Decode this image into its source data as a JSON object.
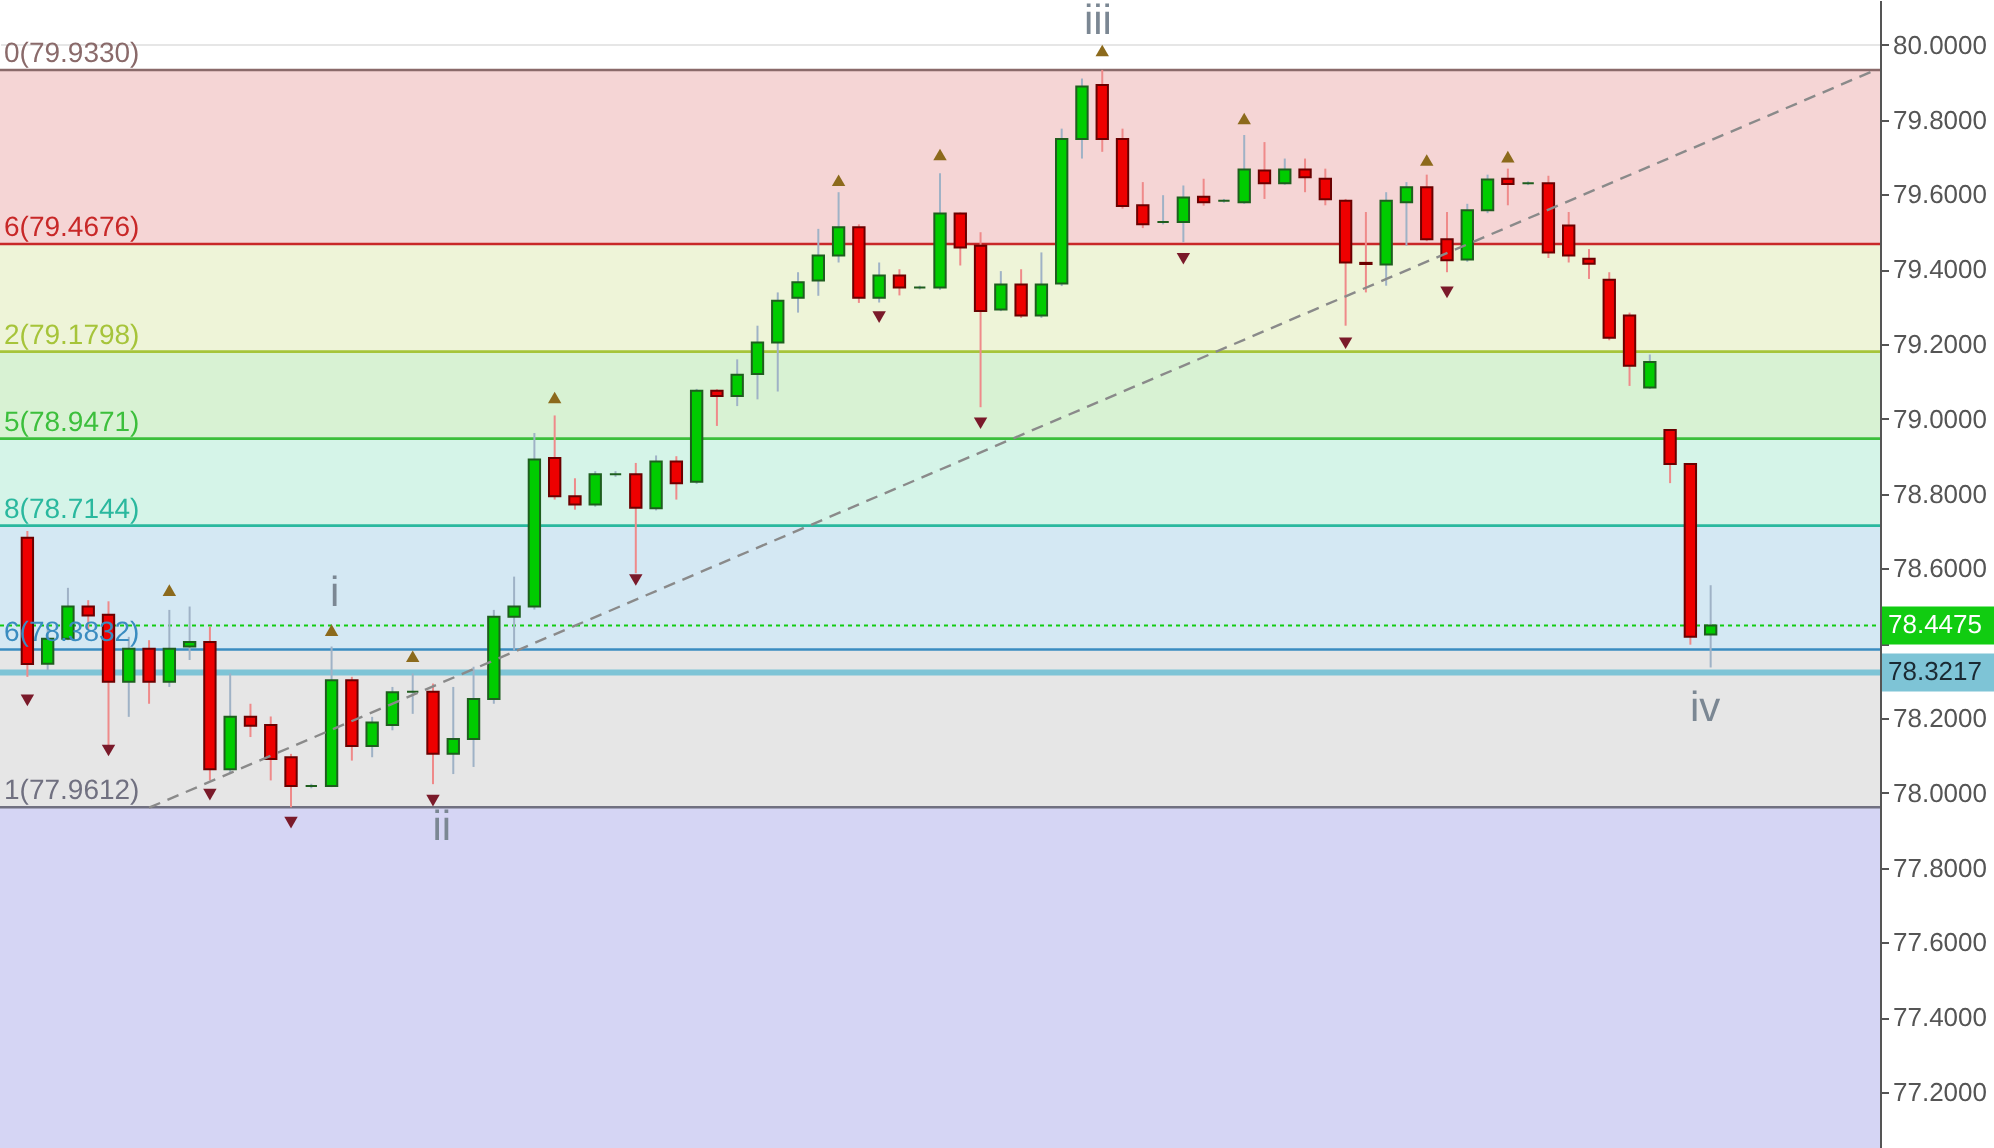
{
  "chart_data": {
    "type": "candlestick",
    "categories": [
      null,
      null,
      null,
      null,
      null,
      null,
      null,
      null,
      null,
      null,
      null,
      null,
      null,
      null,
      null,
      null,
      null,
      null,
      null,
      null,
      null,
      null,
      null,
      null,
      null,
      null,
      null,
      null,
      null,
      null,
      null,
      null,
      null,
      null,
      null,
      null,
      null,
      null,
      null,
      null,
      null,
      null,
      null,
      null,
      null,
      null,
      null,
      null,
      null,
      null,
      null,
      null,
      null,
      null,
      null,
      null,
      null,
      null,
      null,
      null,
      null,
      null,
      null,
      null,
      null,
      null,
      null,
      null,
      null,
      null,
      null,
      null,
      null,
      null,
      null,
      null,
      null,
      null,
      null,
      null,
      null,
      null,
      null,
      null,
      null,
      null,
      null,
      null,
      null,
      null,
      null,
      null,
      null
    ],
    "ohlc": [
      null,
      [
        78.682,
        78.7,
        78.31,
        78.344
      ],
      [
        78.345,
        78.446,
        78.328,
        78.412
      ],
      [
        78.412,
        78.548,
        78.408,
        78.498
      ],
      [
        78.498,
        78.515,
        78.435,
        78.474
      ],
      [
        78.476,
        78.512,
        78.124,
        78.297
      ],
      [
        78.297,
        78.417,
        78.203,
        78.385
      ],
      [
        78.385,
        78.408,
        78.238,
        78.297
      ],
      [
        78.297,
        78.489,
        78.283,
        78.385
      ],
      [
        78.391,
        78.498,
        78.355,
        78.403
      ],
      [
        78.403,
        78.444,
        78.033,
        78.063
      ],
      [
        78.063,
        78.319,
        78.05,
        78.203
      ],
      [
        78.203,
        78.238,
        78.149,
        78.179
      ],
      [
        78.181,
        78.204,
        78.033,
        78.09
      ],
      [
        78.095,
        78.104,
        77.9612,
        78.018
      ],
      [
        78.018,
        78.024,
        78.012,
        78.018
      ],
      [
        78.018,
        78.391,
        78.015,
        78.301
      ],
      [
        78.301,
        78.31,
        78.086,
        78.125
      ],
      [
        78.125,
        78.203,
        78.095,
        78.188
      ],
      [
        78.181,
        78.283,
        78.167,
        78.269
      ],
      [
        78.27,
        78.319,
        78.211,
        78.27
      ],
      [
        78.27,
        78.292,
        78.023,
        78.104
      ],
      [
        78.104,
        78.283,
        78.05,
        78.144
      ],
      [
        78.144,
        78.337,
        78.069,
        78.251
      ],
      [
        78.251,
        78.489,
        78.238,
        78.471
      ],
      [
        78.471,
        78.578,
        78.381,
        78.498
      ],
      [
        78.498,
        78.962,
        78.49,
        78.891
      ],
      [
        78.895,
        79.009,
        78.784,
        78.793
      ],
      [
        78.793,
        78.841,
        78.757,
        78.771
      ],
      [
        78.771,
        78.86,
        78.765,
        78.852
      ],
      [
        78.852,
        78.86,
        78.845,
        78.852
      ],
      [
        78.852,
        78.882,
        78.587,
        78.762
      ],
      [
        78.761,
        78.902,
        78.755,
        78.886
      ],
      [
        78.886,
        78.9,
        78.784,
        78.828
      ],
      [
        78.832,
        79.08,
        78.826,
        79.075
      ],
      [
        79.075,
        79.079,
        78.981,
        79.061
      ],
      [
        79.061,
        79.159,
        79.034,
        79.118
      ],
      [
        79.12,
        79.249,
        79.052,
        79.204
      ],
      [
        79.204,
        79.338,
        79.073,
        79.316
      ],
      [
        79.324,
        79.392,
        79.284,
        79.365
      ],
      [
        79.37,
        79.508,
        79.329,
        79.437
      ],
      [
        79.437,
        79.606,
        79.418,
        79.512
      ],
      [
        79.512,
        79.52,
        79.31,
        79.324
      ],
      [
        79.324,
        79.418,
        79.311,
        79.383
      ],
      [
        79.383,
        79.4,
        79.33,
        79.351
      ],
      [
        79.351,
        79.356,
        79.346,
        79.351
      ],
      [
        79.351,
        79.657,
        79.345,
        79.549
      ],
      [
        79.549,
        79.552,
        79.41,
        79.458
      ],
      [
        79.463,
        79.499,
        79.031,
        79.288
      ],
      [
        79.292,
        79.395,
        79.288,
        79.359
      ],
      [
        79.359,
        79.4,
        79.27,
        79.276
      ],
      [
        79.276,
        79.445,
        79.27,
        79.359
      ],
      [
        79.362,
        79.776,
        79.355,
        79.748
      ],
      [
        79.748,
        79.91,
        79.696,
        79.889
      ],
      [
        79.893,
        79.933,
        79.714,
        79.748
      ],
      [
        79.748,
        79.776,
        79.562,
        79.569
      ],
      [
        79.571,
        79.633,
        79.51,
        79.52
      ],
      [
        79.526,
        79.598,
        79.52,
        79.526
      ],
      [
        79.526,
        79.624,
        79.472,
        79.592
      ],
      [
        79.594,
        79.642,
        79.57,
        79.579
      ],
      [
        79.583,
        79.588,
        79.578,
        79.583
      ],
      [
        79.579,
        79.759,
        79.575,
        79.667
      ],
      [
        79.664,
        79.74,
        79.588,
        79.63
      ],
      [
        79.63,
        79.696,
        79.626,
        79.667
      ],
      [
        79.667,
        79.696,
        79.606,
        79.646
      ],
      [
        79.642,
        79.669,
        79.571,
        79.587
      ],
      [
        79.583,
        79.588,
        79.249,
        79.418
      ],
      [
        79.417,
        79.553,
        79.338,
        79.414
      ],
      [
        79.413,
        79.606,
        79.356,
        79.583
      ],
      [
        79.579,
        79.633,
        79.463,
        79.619
      ],
      [
        79.619,
        79.653,
        79.475,
        79.48
      ],
      [
        79.48,
        79.553,
        79.392,
        79.424
      ],
      [
        79.426,
        79.575,
        79.42,
        79.558
      ],
      [
        79.558,
        79.653,
        79.55,
        79.64
      ],
      [
        79.642,
        79.669,
        79.571,
        79.628
      ],
      [
        79.63,
        79.635,
        79.625,
        79.63
      ],
      [
        79.63,
        79.65,
        79.43,
        79.445
      ],
      [
        79.517,
        79.553,
        79.418,
        79.437
      ],
      [
        79.428,
        79.454,
        79.374,
        79.415
      ],
      [
        79.372,
        79.392,
        79.21,
        79.217
      ],
      [
        79.276,
        79.284,
        79.088,
        79.142
      ],
      [
        79.084,
        79.172,
        79.08,
        79.152
      ],
      [
        78.97,
        78.972,
        78.828,
        78.879
      ],
      [
        78.879,
        78.88,
        78.396,
        78.417
      ],
      [
        78.423,
        78.555,
        78.335,
        78.4475
      ],
      null,
      null,
      null,
      null,
      null,
      null,
      null,
      null
    ],
    "series": [
      {
        "type": "scatter",
        "color": "#8c6a1c",
        "marker": "triangle",
        "values": [
          null,
          null,
          null,
          null,
          null,
          null,
          null,
          null,
          78.542,
          null,
          null,
          null,
          null,
          null,
          null,
          null,
          78.435,
          null,
          null,
          null,
          78.365,
          null,
          null,
          null,
          null,
          null,
          null,
          79.057,
          null,
          null,
          null,
          null,
          null,
          null,
          null,
          null,
          null,
          null,
          null,
          null,
          null,
          79.638,
          null,
          null,
          null,
          null,
          79.707,
          null,
          null,
          null,
          null,
          null,
          null,
          null,
          79.985,
          null,
          null,
          null,
          null,
          null,
          null,
          79.803,
          null,
          null,
          null,
          null,
          null,
          null,
          null,
          null,
          79.692,
          null,
          null,
          null,
          79.701,
          null,
          null,
          null,
          null,
          null,
          null,
          null,
          null,
          null,
          null,
          null,
          null,
          null,
          null,
          null,
          null,
          null,
          null
        ]
      },
      {
        "type": "scatter",
        "color": "#7a1a2a",
        "marker": "triangle",
        "values": [
          null,
          78.247,
          null,
          null,
          null,
          78.113,
          null,
          null,
          null,
          null,
          77.995,
          null,
          null,
          null,
          77.92,
          null,
          null,
          null,
          null,
          null,
          null,
          77.979,
          null,
          null,
          null,
          null,
          null,
          null,
          null,
          null,
          null,
          78.569,
          null,
          null,
          null,
          null,
          null,
          null,
          null,
          null,
          null,
          null,
          null,
          79.272,
          null,
          null,
          null,
          null,
          78.988,
          null,
          null,
          null,
          null,
          null,
          null,
          null,
          null,
          null,
          79.428,
          null,
          null,
          null,
          null,
          null,
          null,
          null,
          79.202,
          null,
          null,
          null,
          null,
          79.338,
          null,
          null,
          null,
          null,
          null,
          null,
          null,
          null,
          null,
          null,
          null,
          null,
          null,
          null,
          null,
          null,
          null,
          null,
          null,
          null,
          null
        ]
      },
      {
        "type": "line",
        "color": "#8a8a8a",
        "line_style": "dashed",
        "values": [
          null,
          null,
          null,
          null,
          null,
          null,
          null,
          77.96,
          null,
          null,
          null,
          null,
          null,
          null,
          null,
          null,
          null,
          null,
          null,
          null,
          null,
          null,
          null,
          null,
          null,
          null,
          null,
          null,
          null,
          null,
          null,
          null,
          null,
          null,
          null,
          null,
          null,
          null,
          null,
          null,
          null,
          null,
          null,
          null,
          null,
          null,
          null,
          null,
          null,
          null,
          null,
          null,
          null,
          null,
          null,
          null,
          null,
          null,
          null,
          null,
          null,
          null,
          null,
          null,
          null,
          null,
          null,
          null,
          null,
          null,
          null,
          null,
          null,
          null,
          null,
          null,
          null,
          null,
          null,
          null,
          null,
          null,
          null,
          null,
          null,
          null,
          null,
          null,
          null,
          null,
          null,
          null,
          79.93
        ]
      }
    ],
    "ylim": [
      77.05,
      80.12
    ],
    "yticks": [
      {
        "value": 77.2,
        "label": "77.2000"
      },
      {
        "value": 77.4,
        "label": "77.4000"
      },
      {
        "value": 77.6,
        "label": "77.6000"
      },
      {
        "value": 77.8,
        "label": "77.8000"
      },
      {
        "value": 78.0,
        "label": "78.0000"
      },
      {
        "value": 78.2,
        "label": "78.2000"
      },
      {
        "value": 78.4,
        "label": null
      },
      {
        "value": 78.6,
        "label": "78.6000"
      },
      {
        "value": 78.8,
        "label": "78.8000"
      },
      {
        "value": 79.0,
        "label": "79.0000"
      },
      {
        "value": 79.2,
        "label": "79.2000"
      },
      {
        "value": 79.4,
        "label": "79.4000"
      },
      {
        "value": 79.6,
        "label": "79.6000"
      },
      {
        "value": 79.8,
        "label": "79.8000"
      },
      {
        "value": 80.0,
        "label": "80.0000"
      }
    ],
    "grid": "y",
    "bands": [
      {
        "axis": "y",
        "from": 79.933,
        "to": 79.4676,
        "color": "#f5d5d5"
      },
      {
        "axis": "y",
        "from": 79.4676,
        "to": 79.1798,
        "color": "#eef4d8"
      },
      {
        "axis": "y",
        "from": 79.1798,
        "to": 78.9471,
        "color": "#d8f2d3"
      },
      {
        "axis": "y",
        "from": 78.9471,
        "to": 78.7144,
        "color": "#d5f4e8"
      },
      {
        "axis": "y",
        "from": 78.7144,
        "to": 78.3832,
        "color": "#d4e8f3"
      },
      {
        "axis": "y",
        "from": 78.3832,
        "to": 77.9612,
        "color": "#e6e6e6"
      },
      {
        "axis": "y",
        "from": 77.9612,
        "to": 77.05,
        "color": "#d5d5f4"
      }
    ],
    "ref_lines": [
      {
        "axis": "y",
        "value": 79.933,
        "label": "0(79.9330)",
        "color": "#8a6a6a"
      },
      {
        "axis": "y",
        "value": 79.4676,
        "label": "6(79.4676)",
        "color": "#c82828"
      },
      {
        "axis": "y",
        "value": 79.1798,
        "label": "2(79.1798)",
        "color": "#a6c43a"
      },
      {
        "axis": "y",
        "value": 78.9471,
        "label": "5(78.9471)",
        "color": "#3cbf3c"
      },
      {
        "axis": "y",
        "value": 78.7144,
        "label": "8(78.7144)",
        "color": "#2ab89e"
      },
      {
        "axis": "y",
        "value": 78.3832,
        "label": "6(78.3832)",
        "color": "#3a8cc0"
      },
      {
        "axis": "y",
        "value": 77.9612,
        "label": "1(77.9612)",
        "color": "#707080"
      },
      {
        "axis": "y",
        "value": 78.4475,
        "label": "78.4475",
        "color": "#11cc11",
        "line_style": "dotted"
      },
      {
        "axis": "y",
        "value": 78.3217,
        "label": "78.3217",
        "color": "#7ec4d6"
      }
    ],
    "annotations": [
      "i",
      "ii",
      "iii",
      "iv"
    ]
  }
}
